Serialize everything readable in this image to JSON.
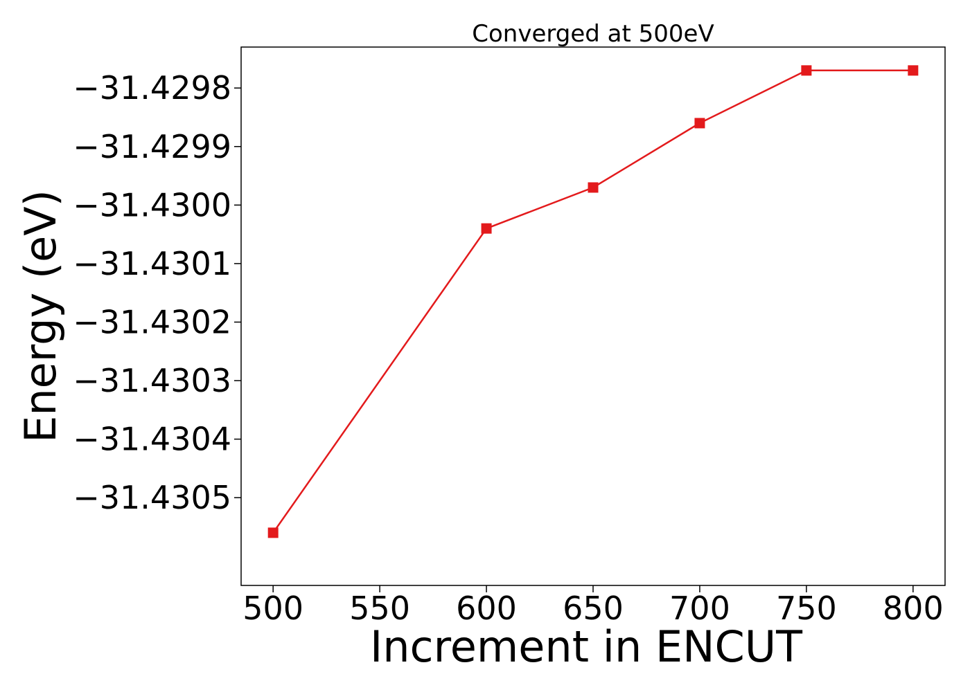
{
  "chart_data": {
    "type": "line",
    "title": "Converged at 500eV",
    "xlabel": "Increment in ENCUT",
    "ylabel": "Energy (eV)",
    "x": [
      500,
      600,
      650,
      700,
      750,
      800
    ],
    "series": [
      {
        "values": [
          -31.43056,
          -31.43004,
          -31.42997,
          -31.42986,
          -31.42977,
          -31.42977
        ],
        "color": "#e31a1c",
        "marker": "square"
      }
    ],
    "xticks": [
      500,
      550,
      600,
      650,
      700,
      750,
      800
    ],
    "xtick_labels": [
      "500",
      "550",
      "600",
      "650",
      "700",
      "750",
      "800"
    ],
    "yticks": [
      -31.4305,
      -31.4304,
      -31.4303,
      -31.4302,
      -31.4301,
      -31.43,
      -31.4299,
      -31.4298
    ],
    "ytick_labels": [
      "−31.4305",
      "−31.4304",
      "−31.4303",
      "−31.4302",
      "−31.4301",
      "−31.4300",
      "−31.4299",
      "−31.4298"
    ],
    "xlim": [
      485,
      815
    ],
    "ylim": [
      -31.43065,
      -31.42973
    ],
    "grid": false,
    "legend": "none"
  }
}
